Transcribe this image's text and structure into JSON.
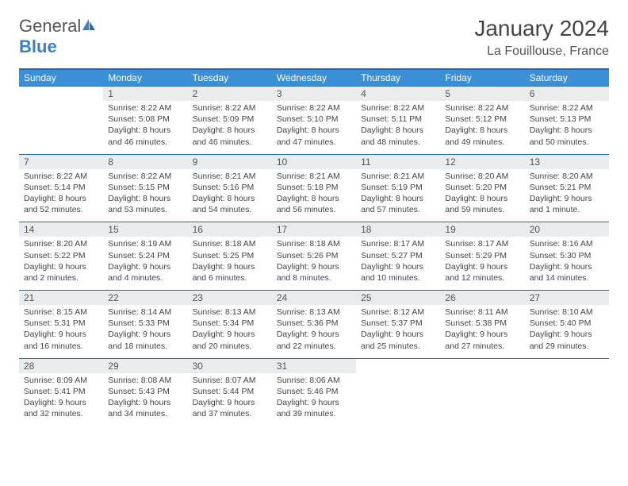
{
  "logo": {
    "text1": "General",
    "text2": "Blue"
  },
  "title": "January 2024",
  "location": "La Fouillouse, France",
  "colors": {
    "header_bg": "#3b8fd4",
    "header_border": "#2a6aa8",
    "daynum_bg": "#e8ecef",
    "text": "#444444",
    "logo_gray": "#555555",
    "logo_blue": "#3b7fc4"
  },
  "weekdays": [
    "Sunday",
    "Monday",
    "Tuesday",
    "Wednesday",
    "Thursday",
    "Friday",
    "Saturday"
  ],
  "weeks": [
    {
      "nums": [
        "",
        "1",
        "2",
        "3",
        "4",
        "5",
        "6"
      ],
      "cells": [
        null,
        {
          "sunrise": "8:22 AM",
          "sunset": "5:08 PM",
          "day": "8 hours and 46 minutes."
        },
        {
          "sunrise": "8:22 AM",
          "sunset": "5:09 PM",
          "day": "8 hours and 46 minutes."
        },
        {
          "sunrise": "8:22 AM",
          "sunset": "5:10 PM",
          "day": "8 hours and 47 minutes."
        },
        {
          "sunrise": "8:22 AM",
          "sunset": "5:11 PM",
          "day": "8 hours and 48 minutes."
        },
        {
          "sunrise": "8:22 AM",
          "sunset": "5:12 PM",
          "day": "8 hours and 49 minutes."
        },
        {
          "sunrise": "8:22 AM",
          "sunset": "5:13 PM",
          "day": "8 hours and 50 minutes."
        }
      ]
    },
    {
      "nums": [
        "7",
        "8",
        "9",
        "10",
        "11",
        "12",
        "13"
      ],
      "cells": [
        {
          "sunrise": "8:22 AM",
          "sunset": "5:14 PM",
          "day": "8 hours and 52 minutes."
        },
        {
          "sunrise": "8:22 AM",
          "sunset": "5:15 PM",
          "day": "8 hours and 53 minutes."
        },
        {
          "sunrise": "8:21 AM",
          "sunset": "5:16 PM",
          "day": "8 hours and 54 minutes."
        },
        {
          "sunrise": "8:21 AM",
          "sunset": "5:18 PM",
          "day": "8 hours and 56 minutes."
        },
        {
          "sunrise": "8:21 AM",
          "sunset": "5:19 PM",
          "day": "8 hours and 57 minutes."
        },
        {
          "sunrise": "8:20 AM",
          "sunset": "5:20 PM",
          "day": "8 hours and 59 minutes."
        },
        {
          "sunrise": "8:20 AM",
          "sunset": "5:21 PM",
          "day": "9 hours and 1 minute."
        }
      ]
    },
    {
      "nums": [
        "14",
        "15",
        "16",
        "17",
        "18",
        "19",
        "20"
      ],
      "cells": [
        {
          "sunrise": "8:20 AM",
          "sunset": "5:22 PM",
          "day": "9 hours and 2 minutes."
        },
        {
          "sunrise": "8:19 AM",
          "sunset": "5:24 PM",
          "day": "9 hours and 4 minutes."
        },
        {
          "sunrise": "8:18 AM",
          "sunset": "5:25 PM",
          "day": "9 hours and 6 minutes."
        },
        {
          "sunrise": "8:18 AM",
          "sunset": "5:26 PM",
          "day": "9 hours and 8 minutes."
        },
        {
          "sunrise": "8:17 AM",
          "sunset": "5:27 PM",
          "day": "9 hours and 10 minutes."
        },
        {
          "sunrise": "8:17 AM",
          "sunset": "5:29 PM",
          "day": "9 hours and 12 minutes."
        },
        {
          "sunrise": "8:16 AM",
          "sunset": "5:30 PM",
          "day": "9 hours and 14 minutes."
        }
      ]
    },
    {
      "nums": [
        "21",
        "22",
        "23",
        "24",
        "25",
        "26",
        "27"
      ],
      "cells": [
        {
          "sunrise": "8:15 AM",
          "sunset": "5:31 PM",
          "day": "9 hours and 16 minutes."
        },
        {
          "sunrise": "8:14 AM",
          "sunset": "5:33 PM",
          "day": "9 hours and 18 minutes."
        },
        {
          "sunrise": "8:13 AM",
          "sunset": "5:34 PM",
          "day": "9 hours and 20 minutes."
        },
        {
          "sunrise": "8:13 AM",
          "sunset": "5:36 PM",
          "day": "9 hours and 22 minutes."
        },
        {
          "sunrise": "8:12 AM",
          "sunset": "5:37 PM",
          "day": "9 hours and 25 minutes."
        },
        {
          "sunrise": "8:11 AM",
          "sunset": "5:38 PM",
          "day": "9 hours and 27 minutes."
        },
        {
          "sunrise": "8:10 AM",
          "sunset": "5:40 PM",
          "day": "9 hours and 29 minutes."
        }
      ]
    },
    {
      "nums": [
        "28",
        "29",
        "30",
        "31",
        "",
        "",
        ""
      ],
      "cells": [
        {
          "sunrise": "8:09 AM",
          "sunset": "5:41 PM",
          "day": "9 hours and 32 minutes."
        },
        {
          "sunrise": "8:08 AM",
          "sunset": "5:43 PM",
          "day": "9 hours and 34 minutes."
        },
        {
          "sunrise": "8:07 AM",
          "sunset": "5:44 PM",
          "day": "9 hours and 37 minutes."
        },
        {
          "sunrise": "8:06 AM",
          "sunset": "5:46 PM",
          "day": "9 hours and 39 minutes."
        },
        null,
        null,
        null
      ]
    }
  ]
}
